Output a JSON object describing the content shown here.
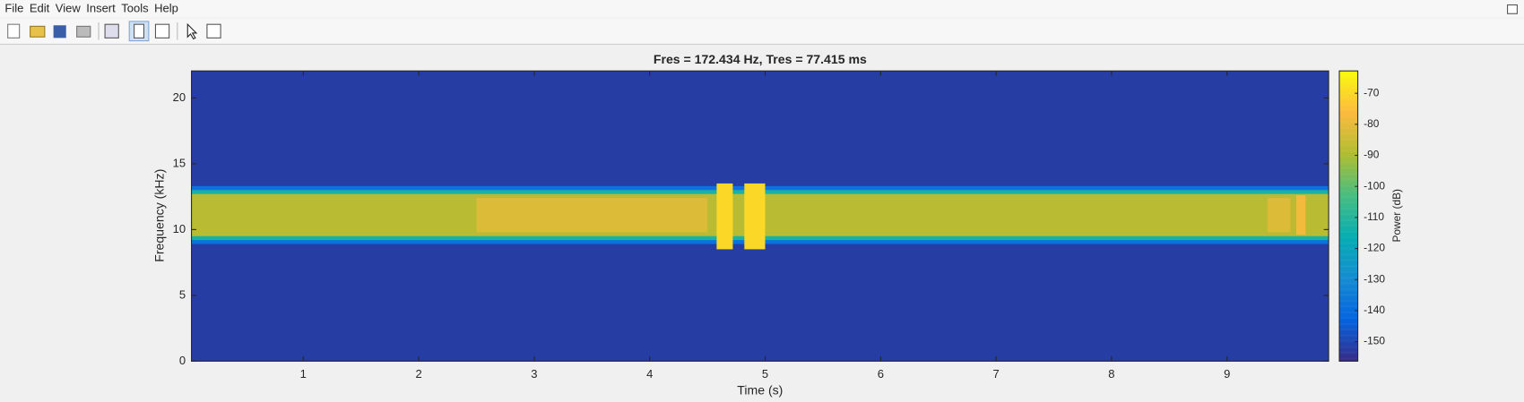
{
  "menu": [
    "File",
    "Edit",
    "View",
    "Insert",
    "Tools",
    "Help"
  ],
  "chart_data": {
    "type": "spectrogram",
    "title": "Fres = 172.434 Hz, Tres = 77.415 ms",
    "xlabel": "Time (s)",
    "ylabel": "Frequency (kHz)",
    "xlim": [
      0.032,
      9.88
    ],
    "xticks": [
      1,
      2,
      3,
      4,
      5,
      6,
      7,
      8,
      9
    ],
    "ylim": [
      0,
      22.05
    ],
    "yticks": [
      0,
      5,
      10,
      15,
      20
    ],
    "colorbar_label": "Power (dB)",
    "clim": [
      -156.3,
      -62.8
    ],
    "cticks": [
      -150,
      -140,
      -130,
      -120,
      -110,
      -100,
      -90,
      -80,
      -70
    ],
    "regions": [
      {
        "t": [
          0.032,
          9.88
        ],
        "f": [
          0,
          22.05
        ],
        "power": -152
      },
      {
        "t": [
          0.032,
          9.88
        ],
        "f": [
          8.9,
          13.3
        ],
        "power": -138
      },
      {
        "t": [
          0.032,
          9.88
        ],
        "f": [
          9.2,
          13.0
        ],
        "power": -112
      },
      {
        "t": [
          0.032,
          9.88
        ],
        "f": [
          9.5,
          12.7
        ],
        "power": -88
      },
      {
        "t": [
          2.5,
          4.5
        ],
        "f": [
          9.8,
          12.4
        ],
        "power": -82
      },
      {
        "t": [
          4.58,
          4.72
        ],
        "f": [
          8.5,
          13.5
        ],
        "power": -70
      },
      {
        "t": [
          4.82,
          5.0
        ],
        "f": [
          8.5,
          13.5
        ],
        "power": -70
      },
      {
        "t": [
          9.35,
          9.55
        ],
        "f": [
          9.8,
          12.4
        ],
        "power": -82
      },
      {
        "t": [
          9.6,
          9.68
        ],
        "f": [
          9.6,
          12.6
        ],
        "power": -78
      }
    ]
  }
}
